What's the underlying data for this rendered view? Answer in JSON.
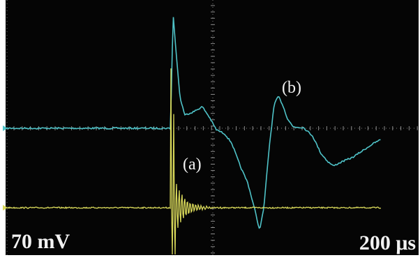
{
  "annotations": {
    "a": "(a)",
    "b": "(b)"
  },
  "scale": {
    "voltage": "70 mV",
    "time": "200 μs"
  }
}
